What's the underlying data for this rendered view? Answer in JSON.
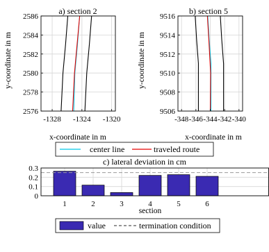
{
  "chart_data": [
    {
      "type": "line",
      "title": "a) section 2",
      "xlabel": "x-coordinate in m",
      "ylabel": "y-coordinate in m",
      "xlim": [
        -1329.5,
        -1319.5
      ],
      "ylim": [
        2576,
        2586
      ],
      "xticks": [
        -1328,
        -1324,
        -1320
      ],
      "yticks": [
        2576,
        2578,
        2580,
        2582,
        2584,
        2586
      ],
      "xtick_labels": [
        "-1328",
        "-1324",
        "-1320"
      ],
      "ytick_labels": [
        "2576",
        "2578",
        "2580",
        "2582",
        "2584",
        "2586"
      ],
      "grid": true,
      "series": [
        {
          "key": "left_boundary",
          "color": "#000000",
          "points": [
            [
              -1326.8,
              2576
            ],
            [
              -1326.55,
              2580
            ],
            [
              -1326.2,
              2583
            ],
            [
              -1325.9,
              2586
            ]
          ]
        },
        {
          "key": "right_boundary",
          "color": "#000000",
          "points": [
            [
              -1323.6,
              2576
            ],
            [
              -1323.35,
              2580
            ],
            [
              -1323.0,
              2583
            ],
            [
              -1322.7,
              2586
            ]
          ]
        },
        {
          "key": "center_line",
          "color": "#00c8e6",
          "points": [
            [
              -1325.1,
              2576
            ],
            [
              -1324.95,
              2580
            ],
            [
              -1324.6,
              2583
            ],
            [
              -1324.3,
              2586
            ]
          ]
        },
        {
          "key": "traveled_route",
          "color": "#e60000",
          "points": [
            [
              -1325.25,
              2576
            ],
            [
              -1325.0,
              2580
            ],
            [
              -1324.65,
              2583
            ],
            [
              -1324.3,
              2586
            ]
          ]
        }
      ]
    },
    {
      "type": "line",
      "title": "b) section 5",
      "xlabel": "x-coordinate in m",
      "ylabel": "y-coordinate in m",
      "xlim": [
        -348.5,
        -339.5
      ],
      "ylim": [
        9506,
        9516
      ],
      "xticks": [
        -348,
        -346,
        -344,
        -342,
        -340
      ],
      "yticks": [
        9506,
        9508,
        9510,
        9512,
        9514,
        9516
      ],
      "xtick_labels": [
        "-348",
        "-346",
        "-344",
        "-342",
        "-340"
      ],
      "ytick_labels": [
        "9506",
        "9508",
        "9510",
        "9512",
        "9514",
        "9516"
      ],
      "grid": true,
      "series": [
        {
          "key": "left_boundary",
          "color": "#000000",
          "points": [
            [
              -345.65,
              9506
            ],
            [
              -345.65,
              9511
            ],
            [
              -345.9,
              9513.5
            ],
            [
              -346.1,
              9516
            ]
          ]
        },
        {
          "key": "right_boundary",
          "color": "#000000",
          "points": [
            [
              -342.15,
              9506
            ],
            [
              -342.15,
              9511
            ],
            [
              -342.4,
              9513.5
            ],
            [
              -342.6,
              9516
            ]
          ]
        },
        {
          "key": "center_line",
          "color": "#00c8e6",
          "points": [
            [
              -343.9,
              9506
            ],
            [
              -343.9,
              9511
            ],
            [
              -344.15,
              9513.5
            ],
            [
              -344.35,
              9516
            ]
          ]
        },
        {
          "key": "traveled_route",
          "color": "#e60000",
          "points": [
            [
              -344.0,
              9506
            ],
            [
              -343.95,
              9510
            ],
            [
              -344.2,
              9513.5
            ],
            [
              -344.4,
              9516
            ]
          ]
        }
      ]
    },
    {
      "type": "bar",
      "title": "c) lateral deviation in cm",
      "xlabel": "section",
      "ylabel": "",
      "categories": [
        "1",
        "2",
        "3",
        "4",
        "5",
        "6"
      ],
      "ylim": [
        0,
        0.3
      ],
      "yticks": [
        0,
        0.1,
        0.2,
        0.3
      ],
      "ytick_labels": [
        "0",
        "0.1",
        "0.2",
        "0.3"
      ],
      "grid": true,
      "bar_color": "#3a2ab2",
      "series": [
        {
          "name": "value",
          "values": [
            0.265,
            0.115,
            0.035,
            0.22,
            0.228,
            0.21
          ]
        }
      ],
      "reference_line": {
        "name": "termination condition",
        "value": 0.25,
        "color": "#999999",
        "dash": true
      }
    }
  ],
  "legends": {
    "top": [
      {
        "label": "center line",
        "color": "#00c8e6"
      },
      {
        "label": "traveled route",
        "color": "#e60000"
      }
    ],
    "bottom": [
      {
        "label": "value",
        "color": "#3a2ab2",
        "kind": "patch"
      },
      {
        "label": "termination condition",
        "color": "#555555",
        "kind": "dashed"
      }
    ]
  }
}
